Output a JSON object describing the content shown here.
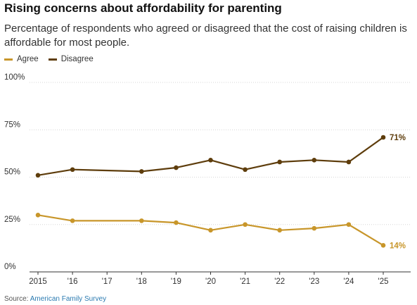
{
  "header": {
    "title": "Rising concerns about affordability for parenting",
    "subtitle": "Percentage of respondents who agreed or disagreed that the cost of raising children is affordable for most people."
  },
  "legend": {
    "items": [
      {
        "label": "Agree",
        "color": "#c8962a"
      },
      {
        "label": "Disagree",
        "color": "#5e3d0c"
      }
    ]
  },
  "source": {
    "prefix": "Source: ",
    "link_text": "American Family Survey"
  },
  "chart_data": {
    "type": "line",
    "x": [
      2015,
      2016,
      2017,
      2018,
      2019,
      2020,
      2021,
      2022,
      2023,
      2024,
      2025
    ],
    "x_tick_labels": [
      "2015",
      "'16",
      "'17",
      "'18",
      "'19",
      "'20",
      "'21",
      "'22",
      "'23",
      "'24",
      "'25"
    ],
    "ylim": [
      0,
      100
    ],
    "y_ticks": [
      0,
      25,
      50,
      75,
      100
    ],
    "y_tick_labels": [
      "0%",
      "25%",
      "50%",
      "75%",
      "100%"
    ],
    "grid": "horizontal",
    "legend_position": "top-left",
    "series": [
      {
        "name": "Agree",
        "color": "#c8962a",
        "points": [
          [
            2015,
            30
          ],
          [
            2016,
            27
          ],
          [
            2018,
            27
          ],
          [
            2019,
            26
          ],
          [
            2020,
            22
          ],
          [
            2021,
            25
          ],
          [
            2022,
            22
          ],
          [
            2023,
            23
          ],
          [
            2024,
            25
          ],
          [
            2025,
            14
          ]
        ],
        "end_label": "14%"
      },
      {
        "name": "Disagree",
        "color": "#5e3d0c",
        "points": [
          [
            2015,
            51
          ],
          [
            2016,
            54
          ],
          [
            2018,
            53
          ],
          [
            2019,
            55
          ],
          [
            2020,
            59
          ],
          [
            2021,
            54
          ],
          [
            2022,
            58
          ],
          [
            2023,
            59
          ],
          [
            2024,
            58
          ],
          [
            2025,
            71
          ]
        ],
        "end_label": "71%"
      }
    ]
  }
}
